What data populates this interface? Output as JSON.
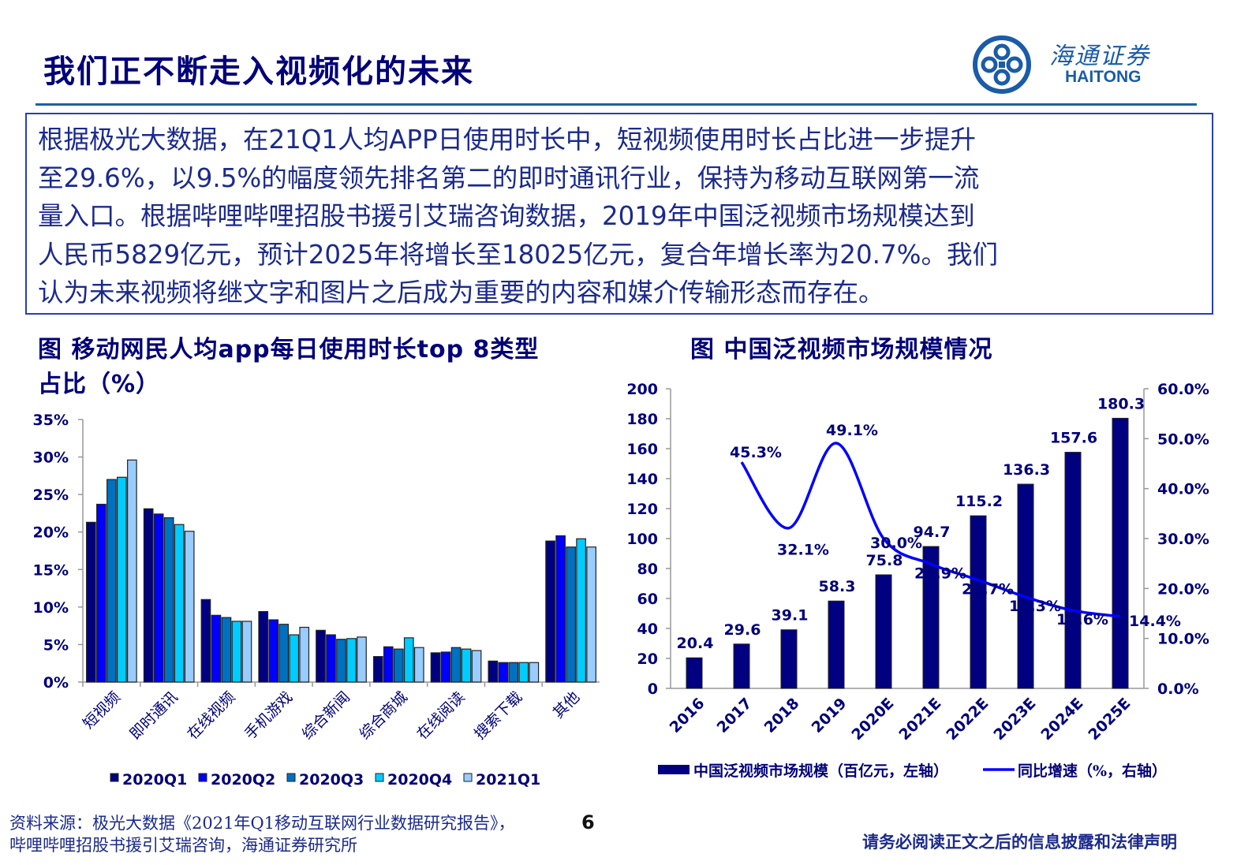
{
  "header": {
    "title": "我们正不断走入视频化的未来",
    "logo_cn": "海通证券",
    "logo_en": "HAITONG",
    "brand_color": "#1a5ca8"
  },
  "summary": {
    "lines": [
      "根据极光大数据，在21Q1人均APP日使用时长中，短视频使用时长占比进一步提升",
      "至29.6%，以9.5%的幅度领先排名第二的即时通讯行业，保持为移动互联网第一流",
      "量入口。根据哔哩哔哩招股书援引艾瑞咨询数据，2019年中国泛视频市场规模达到",
      "人民币5829亿元，预计2025年将增长至18025亿元，复合年增长率为20.7%。我们",
      "认为未来视频将继文字和图片之后成为重要的内容和媒介传输形态而存在。"
    ]
  },
  "chart_data": [
    {
      "type": "bar",
      "title": "图 移动网民人均app每日使用时长top 8类型占比（%）",
      "title_lines": [
        "图 移动网民人均app每日使用时长top 8类型",
        "占比（%）"
      ],
      "categories": [
        "短视频",
        "即时通讯",
        "在线视频",
        "手机游戏",
        "综合新闻",
        "综合商城",
        "在线阅读",
        "搜索下载",
        "其他"
      ],
      "ylim": [
        0,
        35
      ],
      "yticks": [
        "0%",
        "5%",
        "10%",
        "15%",
        "20%",
        "25%",
        "30%",
        "35%"
      ],
      "legend_position": "bottom",
      "series": [
        {
          "name": "2020Q1",
          "color": "#000080",
          "values": [
            21.3,
            23.1,
            11.0,
            9.4,
            6.9,
            3.4,
            3.9,
            2.8,
            18.8
          ]
        },
        {
          "name": "2020Q2",
          "color": "#0000FF",
          "values": [
            23.7,
            22.4,
            8.9,
            8.3,
            6.3,
            4.7,
            4.0,
            2.6,
            19.5
          ]
        },
        {
          "name": "2020Q3",
          "color": "#0070C0",
          "values": [
            27.0,
            21.9,
            8.6,
            7.7,
            5.7,
            4.4,
            4.6,
            2.6,
            18.0
          ]
        },
        {
          "name": "2020Q4",
          "color": "#00CCFF",
          "values": [
            27.3,
            21.0,
            8.1,
            6.3,
            5.8,
            5.9,
            4.4,
            2.6,
            19.1
          ]
        },
        {
          "name": "2021Q1",
          "color": "#99CCFF",
          "values": [
            29.6,
            20.1,
            8.1,
            7.3,
            6.0,
            4.6,
            4.2,
            2.6,
            18.0
          ]
        }
      ]
    },
    {
      "type": "bar+line",
      "title": "图 中国泛视频市场规模情况",
      "categories": [
        "2016",
        "2017",
        "2018",
        "2019",
        "2020E",
        "2021E",
        "2022E",
        "2023E",
        "2024E",
        "2025E"
      ],
      "ylim": [
        0,
        200
      ],
      "yticks": [
        "0",
        "20",
        "40",
        "60",
        "80",
        "100",
        "120",
        "140",
        "160",
        "180",
        "200"
      ],
      "y2lim": [
        0,
        60
      ],
      "y2ticks": [
        "0.0%",
        "10.0%",
        "20.0%",
        "30.0%",
        "40.0%",
        "50.0%",
        "60.0%"
      ],
      "legend_position": "bottom",
      "series": [
        {
          "name": "中国泛视频市场规模（百亿元，左轴）",
          "type": "bar",
          "color": "#000080",
          "values": [
            20.4,
            29.6,
            39.1,
            58.3,
            75.8,
            94.7,
            115.2,
            136.3,
            157.6,
            180.3
          ],
          "labels": [
            "20.4",
            "29.6",
            "39.1",
            "58.3",
            "75.8",
            "94.7",
            "115.2",
            "136.3",
            "157.6",
            "180.3"
          ]
        },
        {
          "name": "同比增速（%，右轴）",
          "type": "line",
          "axis": "right",
          "color": "#0000FF",
          "values": [
            null,
            45.3,
            32.1,
            49.1,
            30.0,
            24.9,
            21.7,
            18.3,
            15.6,
            14.4
          ],
          "labels": [
            "",
            "45.3%",
            "32.1%",
            "49.1%",
            "30.0%",
            "24.9%",
            "21.7%",
            "18.3%",
            "15.6%",
            "14.4%"
          ]
        }
      ]
    }
  ],
  "footer": {
    "source_line1": "资料来源：极光大数据《2021年Q1移动互联网行业数据研究报告》，",
    "source_line2": "哔哩哔哩招股书援引艾瑞咨询，海通证券研究所",
    "page": "6",
    "disclaimer": "请务必阅读正文之后的信息披露和法律声明"
  }
}
